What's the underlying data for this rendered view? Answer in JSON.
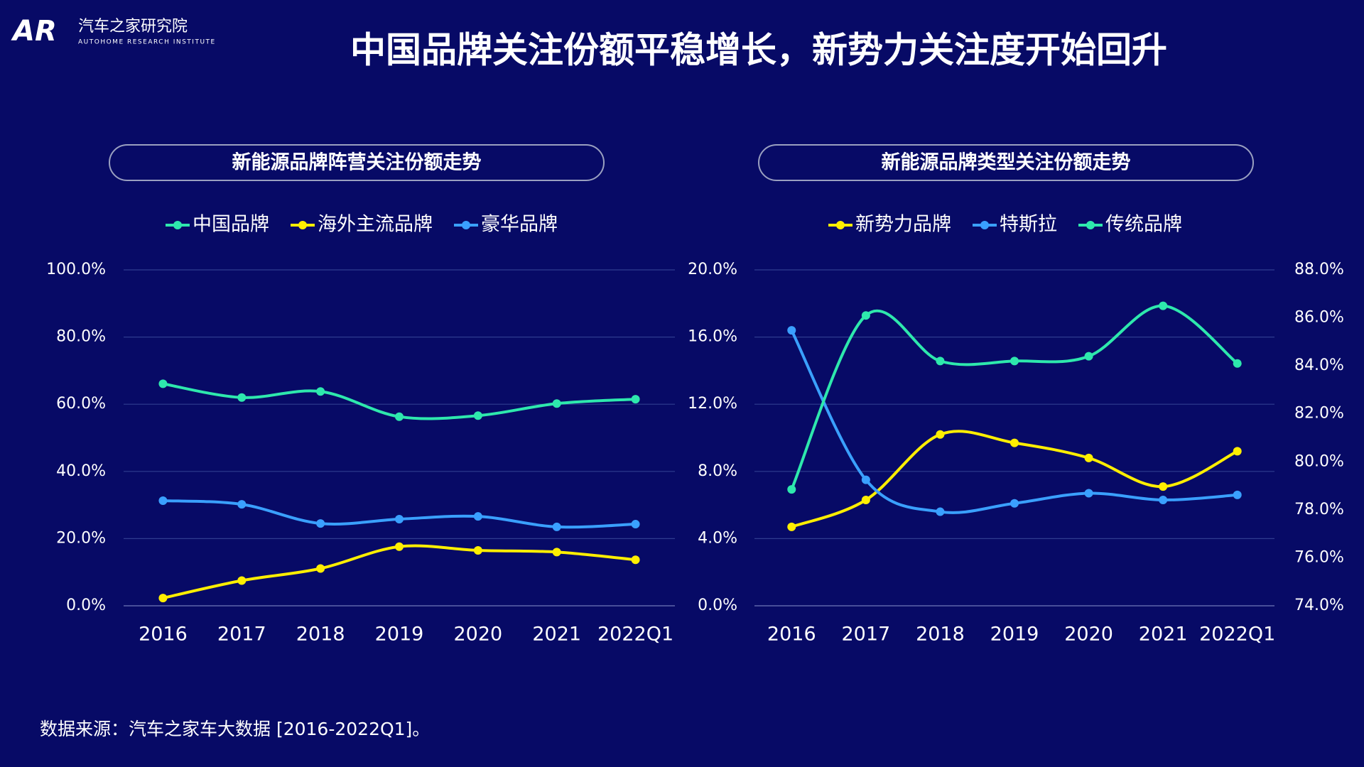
{
  "logo": {
    "mark": "AR",
    "name": "汽车之家研究院",
    "subtitle": "AUTOHOME RESEARCH INSTITUTE"
  },
  "title": "中国品牌关注份额平稳增长，新势力关注度开始回升",
  "source": "数据来源：汽车之家车大数据 [2016-2022Q1]。",
  "chart_data": [
    {
      "type": "line",
      "title": "新能源品牌阵营关注份额走势",
      "categories": [
        "2016",
        "2017",
        "2018",
        "2019",
        "2020",
        "2021",
        "2022Q1"
      ],
      "series": [
        {
          "name": "中国品牌",
          "color": "#2ee8ad",
          "values": [
            66.1,
            62,
            63.8,
            56.3,
            56.6,
            60.2,
            61.5
          ]
        },
        {
          "name": "海外主流品牌",
          "color": "#ffee00",
          "values": [
            2.3,
            7.5,
            11.1,
            17.6,
            16.5,
            16.0,
            13.7
          ]
        },
        {
          "name": "豪华品牌",
          "color": "#3aa0ff",
          "values": [
            31.3,
            30.2,
            24.5,
            25.8,
            26.6,
            23.5,
            24.3
          ]
        }
      ],
      "ylim": [
        0,
        100
      ],
      "yticks": [
        {
          "value": 0,
          "label": "0.0%"
        },
        {
          "value": 20,
          "label": "20.0%"
        },
        {
          "value": 40,
          "label": "40.0%"
        },
        {
          "value": 60,
          "label": "60.0%"
        },
        {
          "value": 80,
          "label": "80.0%"
        },
        {
          "value": 100,
          "label": "100.0%"
        }
      ],
      "grid": true
    },
    {
      "type": "line",
      "title": "新能源品牌类型关注份额走势",
      "categories": [
        "2016",
        "2017",
        "2018",
        "2019",
        "2020",
        "2021",
        "2022Q1"
      ],
      "series": [
        {
          "name": "新势力品牌",
          "color": "#ffee00",
          "values": [
            4.7,
            6.3,
            10.2,
            9.7,
            8.8,
            7.1,
            9.2
          ]
        },
        {
          "name": "特斯拉",
          "color": "#3aa0ff",
          "values": [
            16.4,
            7.5,
            5.6,
            6.1,
            6.7,
            6.3,
            6.6
          ]
        },
        {
          "name": "传统品牌",
          "color": "#2ee8ad",
          "axis": "y2",
          "values": [
            78.85,
            86.1,
            84.2,
            84.2,
            84.4,
            86.5,
            84.1
          ]
        }
      ],
      "ylim": [
        0,
        20
      ],
      "yticks": [
        {
          "value": 0,
          "label": "0.0%"
        },
        {
          "value": 4,
          "label": "4.0%"
        },
        {
          "value": 8,
          "label": "8.0%"
        },
        {
          "value": 12,
          "label": "12.0%"
        },
        {
          "value": 16,
          "label": "16.0%"
        },
        {
          "value": 20,
          "label": "20.0%"
        }
      ],
      "y2lim": [
        74,
        88
      ],
      "y2ticks": [
        {
          "value": 74,
          "label": "74.0%"
        },
        {
          "value": 76,
          "label": "76.0%"
        },
        {
          "value": 78,
          "label": "78.0%"
        },
        {
          "value": 80,
          "label": "80.0%"
        },
        {
          "value": 82,
          "label": "82.0%"
        },
        {
          "value": 84,
          "label": "84.0%"
        },
        {
          "value": 86,
          "label": "86.0%"
        },
        {
          "value": 88,
          "label": "88.0%"
        }
      ],
      "grid": true
    }
  ]
}
